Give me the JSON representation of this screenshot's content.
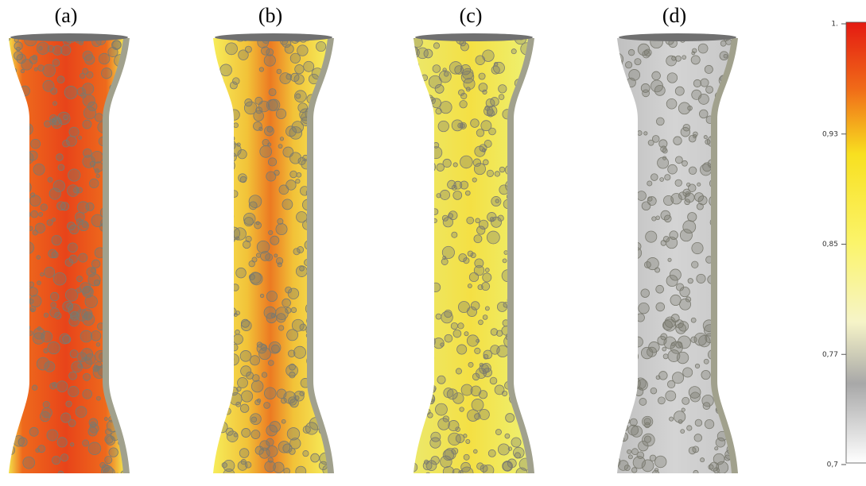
{
  "panels": [
    {
      "label": "(a)"
    },
    {
      "label": "(b)"
    },
    {
      "label": "(c)"
    },
    {
      "label": "(d)"
    }
  ],
  "colorbar": {
    "ticks": [
      "1.",
      "0,93",
      "0,85",
      "0,77",
      "0,7"
    ]
  }
}
